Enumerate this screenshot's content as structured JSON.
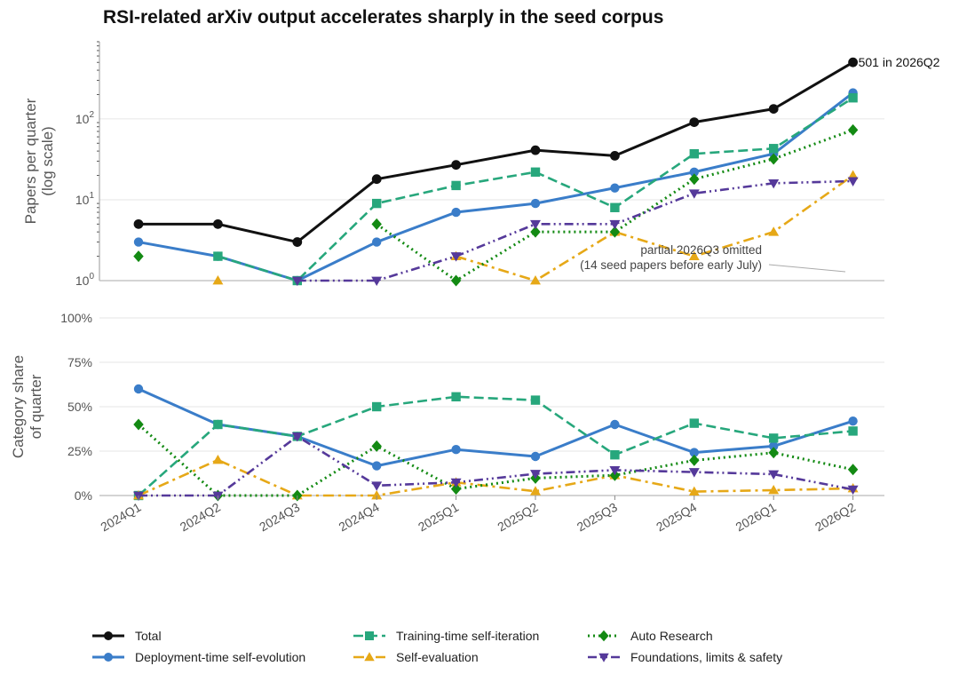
{
  "chart_data": [
    {
      "type": "line",
      "title": "RSI-related arXiv output accelerates sharply in the seed corpus",
      "ylabel": [
        "Papers per quarter",
        "(log scale)"
      ],
      "yscale": "log",
      "ylim": [
        1,
        900
      ],
      "yticks": [
        1,
        10,
        100
      ],
      "ytick_labels": [
        "10",
        "10",
        "10"
      ],
      "ytick_exponents": [
        "0",
        "1",
        "2"
      ],
      "x": [
        "2024Q1",
        "2024Q2",
        "2024Q3",
        "2024Q4",
        "2025Q1",
        "2025Q2",
        "2025Q3",
        "2025Q4",
        "2026Q1",
        "2026Q2"
      ],
      "series": [
        {
          "name": "Total",
          "color": "#111111",
          "marker": "circle",
          "dash": "solid",
          "values": [
            5,
            5,
            3,
            18,
            27,
            41,
            35,
            91,
            133,
            501
          ]
        },
        {
          "name": "Deployment-time self-evolution",
          "color": "#3a7dc9",
          "marker": "circle",
          "dash": "solid",
          "values": [
            3,
            2,
            1,
            3,
            7,
            9,
            14,
            22,
            37,
            210
          ]
        },
        {
          "name": "Training-time self-iteration",
          "color": "#27a77c",
          "marker": "square",
          "dash": "dashed",
          "values": [
            null,
            2,
            1,
            9,
            15,
            22,
            8,
            37,
            43,
            182
          ]
        },
        {
          "name": "Self-evaluation",
          "color": "#e6a817",
          "marker": "triangle-up",
          "dash": "dashdot",
          "values": [
            null,
            1,
            null,
            null,
            2,
            1,
            4,
            2,
            4,
            20
          ]
        },
        {
          "name": "Auto Research",
          "color": "#138a13",
          "marker": "diamond",
          "dash": "dotted",
          "values": [
            2,
            null,
            null,
            5,
            1,
            4,
            4,
            18,
            32,
            73
          ]
        },
        {
          "name": "Foundations, limits & safety",
          "color": "#55399a",
          "marker": "triangle-down",
          "dash": "dashdotdot",
          "values": [
            null,
            null,
            1,
            1,
            2,
            5,
            5,
            12,
            16,
            17
          ]
        }
      ],
      "annotations": {
        "total_end": "501 in 2026Q2",
        "partial_line1": "partial 2026Q3 omitted",
        "partial_line2": "(14 seed papers before early July)"
      },
      "grid": "horizontal"
    },
    {
      "type": "line",
      "ylabel": [
        "Category share",
        "of quarter"
      ],
      "ylim": [
        0,
        100
      ],
      "yticks": [
        0,
        25,
        50,
        75,
        100
      ],
      "ytick_labels": [
        "0%",
        "25%",
        "50%",
        "75%",
        "100%"
      ],
      "x": [
        "2024Q1",
        "2024Q2",
        "2024Q3",
        "2024Q4",
        "2025Q1",
        "2025Q2",
        "2025Q3",
        "2025Q4",
        "2026Q1",
        "2026Q2"
      ],
      "series": [
        {
          "name": "Deployment-time self-evolution",
          "color": "#3a7dc9",
          "marker": "circle",
          "dash": "solid",
          "values": [
            60,
            40,
            33.3,
            16.7,
            25.9,
            22,
            40,
            24.2,
            27.8,
            41.9
          ]
        },
        {
          "name": "Training-time self-iteration",
          "color": "#27a77c",
          "marker": "square",
          "dash": "dashed",
          "values": [
            0,
            40,
            33.3,
            50,
            55.6,
            53.7,
            22.9,
            40.7,
            32.3,
            36.3
          ]
        },
        {
          "name": "Self-evaluation",
          "color": "#e6a817",
          "marker": "triangle-up",
          "dash": "dashdot",
          "values": [
            0,
            20,
            0,
            0,
            7.4,
            2.4,
            11.4,
            2.2,
            3,
            4
          ]
        },
        {
          "name": "Auto Research",
          "color": "#138a13",
          "marker": "diamond",
          "dash": "dotted",
          "values": [
            40,
            0,
            0,
            27.8,
            3.7,
            9.8,
            11.4,
            19.8,
            24.1,
            14.6
          ]
        },
        {
          "name": "Foundations, limits & safety",
          "color": "#55399a",
          "marker": "triangle-down",
          "dash": "dashdotdot",
          "values": [
            0,
            0,
            33.3,
            5.6,
            7.4,
            12.2,
            14.3,
            13.2,
            12,
            3.4
          ]
        }
      ],
      "grid": "horizontal"
    }
  ],
  "legend": {
    "placement": "bottom",
    "entries": [
      {
        "label": "Total",
        "color": "#111111",
        "marker": "circle",
        "dash": "solid"
      },
      {
        "label": "Deployment-time self-evolution",
        "color": "#3a7dc9",
        "marker": "circle",
        "dash": "solid"
      },
      {
        "label": "Training-time self-iteration",
        "color": "#27a77c",
        "marker": "square",
        "dash": "dashed"
      },
      {
        "label": "Self-evaluation",
        "color": "#e6a817",
        "marker": "triangle-up",
        "dash": "dashdot"
      },
      {
        "label": "Auto Research",
        "color": "#138a13",
        "marker": "diamond",
        "dash": "dotted"
      },
      {
        "label": "Foundations, limits & safety",
        "color": "#55399a",
        "marker": "triangle-down",
        "dash": "dashdotdot"
      }
    ]
  }
}
